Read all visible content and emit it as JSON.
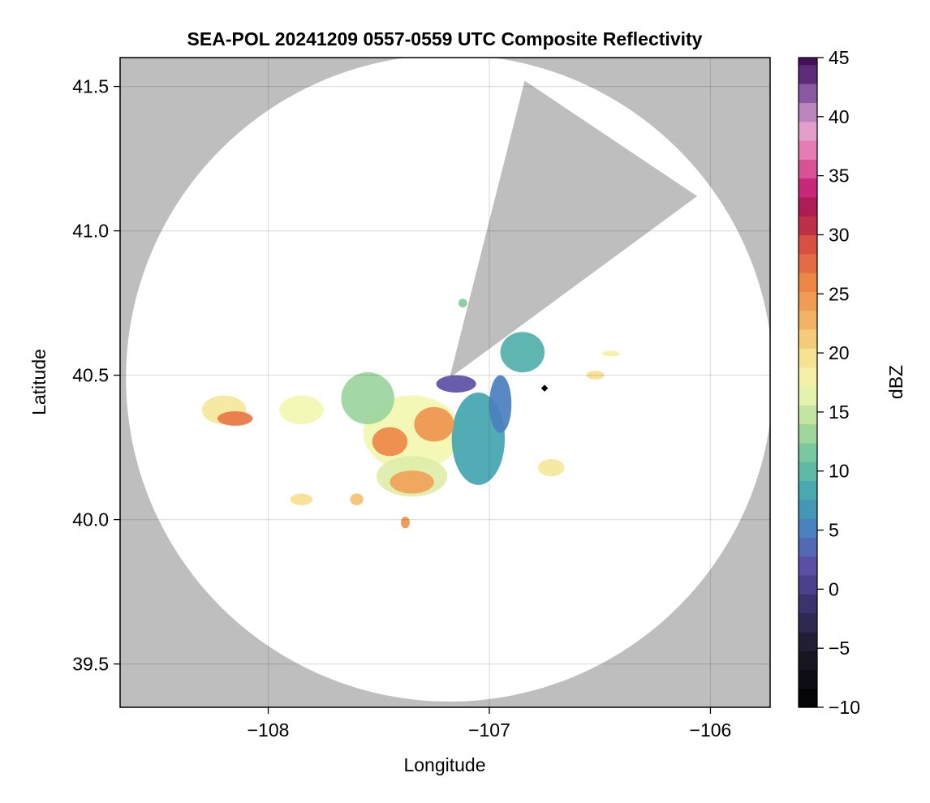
{
  "chart_data": {
    "type": "heatmap",
    "title": "SEA-POL 20241209 0557-0559 UTC Composite Reflectivity",
    "xlabel": "Longitude",
    "ylabel": "Latitude",
    "xlim": [
      -108.67,
      -105.73
    ],
    "ylim": [
      39.35,
      41.6
    ],
    "xticks": [
      {
        "value": -108,
        "label": "−108"
      },
      {
        "value": -107,
        "label": "−107"
      },
      {
        "value": -106,
        "label": "−106"
      }
    ],
    "yticks": [
      {
        "value": 39.5,
        "label": "39.5"
      },
      {
        "value": 40.0,
        "label": "40.0"
      },
      {
        "value": 40.5,
        "label": "40.5"
      },
      {
        "value": 41.0,
        "label": "41.0"
      },
      {
        "value": 41.5,
        "label": "41.5"
      }
    ],
    "grid": true,
    "background_color": "#bebebe",
    "coverage_color": "#ffffff",
    "radar_site": {
      "lon": -107.18,
      "lat": 40.49
    },
    "coverage_radius_deg_lat": 1.12,
    "blocked_sector": {
      "lons": [
        -107.18,
        -106.84,
        -106.06
      ],
      "lats": [
        40.49,
        41.52,
        41.12
      ]
    },
    "marker": {
      "lon": -106.75,
      "lat": 40.455,
      "color": "#000000"
    },
    "echo_regions": [
      {
        "lon": -107.35,
        "lat": 40.3,
        "rx": 0.22,
        "ry": 0.13,
        "dbz": 17
      },
      {
        "lon": -107.05,
        "lat": 40.28,
        "rx": 0.12,
        "ry": 0.16,
        "dbz": 8
      },
      {
        "lon": -107.55,
        "lat": 40.42,
        "rx": 0.12,
        "ry": 0.09,
        "dbz": 13
      },
      {
        "lon": -107.35,
        "lat": 40.15,
        "rx": 0.16,
        "ry": 0.07,
        "dbz": 16
      },
      {
        "lon": -107.45,
        "lat": 40.27,
        "rx": 0.08,
        "ry": 0.05,
        "dbz": 26
      },
      {
        "lon": -107.25,
        "lat": 40.33,
        "rx": 0.09,
        "ry": 0.06,
        "dbz": 25
      },
      {
        "lon": -107.35,
        "lat": 40.13,
        "rx": 0.1,
        "ry": 0.04,
        "dbz": 24
      },
      {
        "lon": -107.15,
        "lat": 40.47,
        "rx": 0.09,
        "ry": 0.03,
        "dbz": 2
      },
      {
        "lon": -106.95,
        "lat": 40.4,
        "rx": 0.05,
        "ry": 0.1,
        "dbz": 5
      },
      {
        "lon": -106.85,
        "lat": 40.58,
        "rx": 0.1,
        "ry": 0.07,
        "dbz": 9
      },
      {
        "lon": -107.85,
        "lat": 40.38,
        "rx": 0.1,
        "ry": 0.05,
        "dbz": 17
      },
      {
        "lon": -108.2,
        "lat": 40.38,
        "rx": 0.1,
        "ry": 0.05,
        "dbz": 19
      },
      {
        "lon": -108.15,
        "lat": 40.35,
        "rx": 0.08,
        "ry": 0.025,
        "dbz": 27
      },
      {
        "lon": -107.6,
        "lat": 40.07,
        "rx": 0.03,
        "ry": 0.02,
        "dbz": 22
      },
      {
        "lon": -107.85,
        "lat": 40.07,
        "rx": 0.05,
        "ry": 0.02,
        "dbz": 20
      },
      {
        "lon": -106.72,
        "lat": 40.18,
        "rx": 0.06,
        "ry": 0.03,
        "dbz": 19
      },
      {
        "lon": -106.52,
        "lat": 40.5,
        "rx": 0.04,
        "ry": 0.015,
        "dbz": 20
      },
      {
        "lon": -106.45,
        "lat": 40.575,
        "rx": 0.04,
        "ry": 0.01,
        "dbz": 18
      },
      {
        "lon": -107.38,
        "lat": 39.99,
        "rx": 0.02,
        "ry": 0.02,
        "dbz": 25
      },
      {
        "lon": -107.12,
        "lat": 40.75,
        "rx": 0.02,
        "ry": 0.015,
        "dbz": 12
      }
    ],
    "colorbar": {
      "label": "dBZ",
      "min": -10,
      "max": 45,
      "step": 1.6,
      "ticks": [
        {
          "value": -10,
          "label": "−10"
        },
        {
          "value": -5,
          "label": "−5"
        },
        {
          "value": 0,
          "label": "0"
        },
        {
          "value": 5,
          "label": "5"
        },
        {
          "value": 10,
          "label": "10"
        },
        {
          "value": 15,
          "label": "15"
        },
        {
          "value": 20,
          "label": "20"
        },
        {
          "value": 25,
          "label": "25"
        },
        {
          "value": 30,
          "label": "30"
        },
        {
          "value": 35,
          "label": "35"
        },
        {
          "value": 40,
          "label": "40"
        },
        {
          "value": 45,
          "label": "45"
        }
      ],
      "stops": [
        {
          "value": -10,
          "color": "#000000"
        },
        {
          "value": -5,
          "color": "#1e1a2c"
        },
        {
          "value": -1,
          "color": "#3a3570"
        },
        {
          "value": 2,
          "color": "#5a4fa5"
        },
        {
          "value": 5,
          "color": "#4b7fc0"
        },
        {
          "value": 8,
          "color": "#43a5b0"
        },
        {
          "value": 11,
          "color": "#6cc3a0"
        },
        {
          "value": 14,
          "color": "#b3dd9b"
        },
        {
          "value": 17,
          "color": "#f2f7b0"
        },
        {
          "value": 20,
          "color": "#f7df8e"
        },
        {
          "value": 23,
          "color": "#f2b05f"
        },
        {
          "value": 26,
          "color": "#ee8746"
        },
        {
          "value": 29,
          "color": "#dc5340"
        },
        {
          "value": 32,
          "color": "#a8184c"
        },
        {
          "value": 34,
          "color": "#c8287a"
        },
        {
          "value": 37,
          "color": "#e777b3"
        },
        {
          "value": 39,
          "color": "#e3a2cc"
        },
        {
          "value": 41,
          "color": "#a977b8"
        },
        {
          "value": 43,
          "color": "#6d3a8c"
        },
        {
          "value": 45,
          "color": "#3d0a4f"
        }
      ]
    }
  }
}
